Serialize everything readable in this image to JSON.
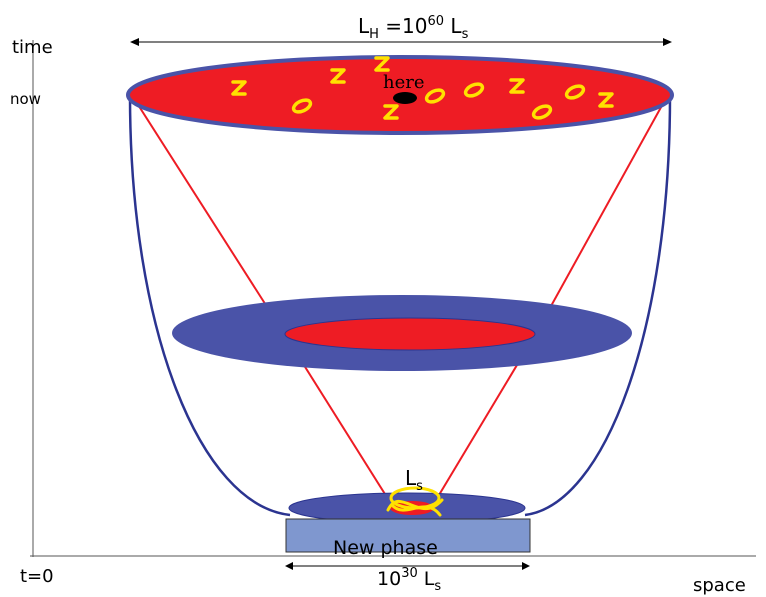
{
  "axes": {
    "y_label": "time",
    "x_label": "space",
    "now_label": "now",
    "origin_label": "t=0"
  },
  "horizon": {
    "base": "L",
    "sub": "H",
    "eq": " =10",
    "exp": "60",
    "unit": " L",
    "unit_sub": "s"
  },
  "here_label": "here",
  "strings_label": {
    "base": "L",
    "sub": "s"
  },
  "new_phase": {
    "label": "New phase",
    "size_base": "10",
    "size_exp": "30",
    "size_unit": " L",
    "size_sub": "s"
  },
  "colors": {
    "red": "#ee1c24",
    "blue": "#4a53a8",
    "dark_blue": "#2b3490",
    "yellow": "#ffe100",
    "box": "#7f97cf"
  }
}
